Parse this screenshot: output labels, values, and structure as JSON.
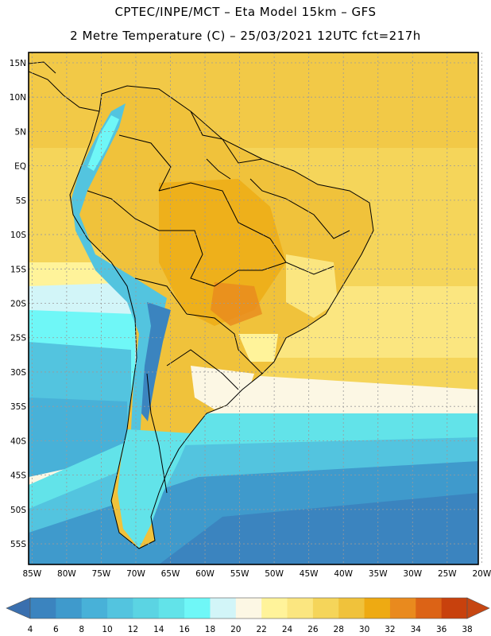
{
  "header": {
    "line1": "CPTEC/INPE/MCT –  Eta Model 15km – GFS",
    "line2": "2 Metre Temperature (C) – 25/03/2021 12UTC fct=217h"
  },
  "map": {
    "lat_labels": [
      "15N",
      "10N",
      "5N",
      "EQ",
      "5S",
      "10S",
      "15S",
      "20S",
      "25S",
      "30S",
      "35S",
      "40S",
      "45S",
      "50S",
      "55S"
    ],
    "lon_labels": [
      "85W",
      "80W",
      "75W",
      "70W",
      "65W",
      "60W",
      "55W",
      "50W",
      "45W",
      "40W",
      "35W",
      "30W",
      "25W",
      "20W"
    ],
    "lat_range": [
      16.5,
      -58
    ],
    "lon_range": [
      -85.5,
      -20.5
    ]
  },
  "colorbar": {
    "ticks": [
      "4",
      "6",
      "8",
      "10",
      "12",
      "14",
      "16",
      "18",
      "20",
      "22",
      "24",
      "26",
      "28",
      "30",
      "32",
      "34",
      "36",
      "38"
    ],
    "colors": [
      "#3a6fae",
      "#3b84bf",
      "#3f9acc",
      "#48b1d8",
      "#53c4df",
      "#5bd4e3",
      "#62e3e9",
      "#6ff7f7",
      "#d2f5f8",
      "#fcf7e4",
      "#fff39a",
      "#fbe680",
      "#f5d55a",
      "#f0c23b",
      "#eeaa12",
      "#e98a1e",
      "#dc6316",
      "#c8410d",
      "#c64612"
    ]
  },
  "colors": {
    "land_boundary": "#000000",
    "ocean_warm": "#f5d55a",
    "ocean_cold": "#3b84bf"
  }
}
